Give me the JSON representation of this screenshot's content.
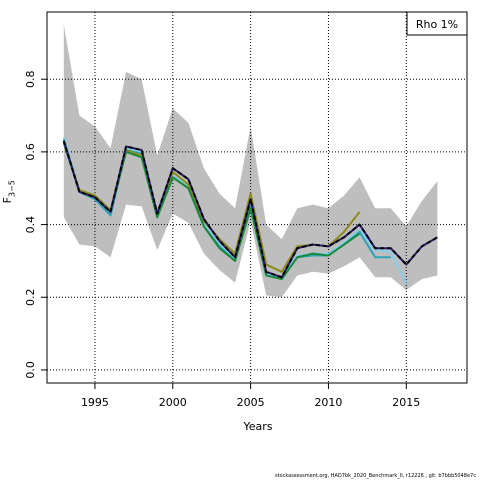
{
  "chart_data": {
    "type": "line",
    "xlabel": "Years",
    "ylabel": "F",
    "ylabel_sub": "3−5",
    "legend_text": "Rho 1%",
    "footer": "stockassessment.org, HAD7bk_2020_Benchmark_II, r12226 , git: b7bbb5048e7c",
    "x": [
      1993,
      1994,
      1995,
      1996,
      1997,
      1998,
      1999,
      2000,
      2001,
      2002,
      2003,
      2004,
      2005,
      2006,
      2007,
      2008,
      2009,
      2010,
      2011,
      2012,
      2013,
      2014,
      2015,
      2016,
      2017
    ],
    "xlim": [
      1991.92,
      2018.9
    ],
    "xticks": [
      1995,
      2000,
      2005,
      2010,
      2015
    ],
    "ylim": [
      -0.036,
      0.985
    ],
    "yticks": [
      {
        "value": 0,
        "label": "0.0"
      },
      0.2,
      0.4,
      0.6,
      0.8
    ],
    "grid": true,
    "band": {
      "color": "#bebebe",
      "upper": [
        0.95,
        0.7,
        0.67,
        0.61,
        0.82,
        0.8,
        0.59,
        0.72,
        0.68,
        0.555,
        0.485,
        0.445,
        0.67,
        0.4,
        0.36,
        0.445,
        0.455,
        0.445,
        0.48,
        0.53,
        0.445,
        0.445,
        0.395,
        0.465,
        0.52
      ],
      "lower": [
        0.42,
        0.345,
        0.34,
        0.31,
        0.455,
        0.45,
        0.33,
        0.43,
        0.405,
        0.32,
        0.275,
        0.24,
        0.41,
        0.205,
        0.2,
        0.26,
        0.27,
        0.265,
        0.285,
        0.31,
        0.255,
        0.255,
        0.22,
        0.25,
        0.26
      ]
    },
    "series": [
      {
        "color": "#87ceeb",
        "dash": false,
        "values": [
          0.64,
          0.49,
          0.47,
          0.425,
          0.61,
          0.6,
          0.425,
          0.535,
          0.505,
          0.4,
          0.345,
          0.305,
          0.455,
          0.265,
          0.255,
          0.315,
          0.32,
          0.32,
          0.35,
          0.385,
          0.33,
          0.325,
          0.235,
          null,
          null
        ]
      },
      {
        "color": "#2ea3b8",
        "dash": false,
        "values": [
          0.635,
          0.49,
          0.47,
          0.425,
          0.605,
          0.595,
          0.42,
          0.53,
          0.5,
          0.395,
          0.34,
          0.3,
          0.45,
          0.26,
          0.25,
          0.31,
          0.315,
          0.315,
          0.345,
          0.38,
          0.31,
          0.31,
          null,
          null,
          null
        ]
      },
      {
        "color": "#8b8b1a",
        "dash": false,
        "values": [
          0.625,
          0.495,
          0.48,
          0.44,
          0.605,
          0.59,
          0.43,
          0.545,
          0.51,
          0.41,
          0.36,
          0.32,
          0.485,
          0.29,
          0.27,
          0.34,
          0.345,
          0.34,
          0.38,
          0.435,
          null,
          null,
          null,
          null,
          null
        ]
      },
      {
        "color": "#1a8a3a",
        "dash": false,
        "values": [
          0.625,
          0.49,
          0.475,
          0.435,
          0.6,
          0.585,
          0.42,
          0.53,
          0.5,
          0.395,
          0.335,
          0.3,
          0.445,
          0.26,
          0.25,
          0.31,
          0.32,
          0.315,
          0.345,
          0.375,
          null,
          null,
          null,
          null,
          null
        ]
      },
      {
        "color": "#2b1a6e",
        "dash": false,
        "values": [
          0.63,
          0.49,
          0.475,
          0.435,
          0.615,
          0.605,
          0.43,
          0.555,
          0.525,
          0.415,
          0.355,
          0.31,
          0.47,
          0.27,
          0.255,
          0.335,
          0.345,
          0.34,
          0.365,
          0.4,
          0.335,
          0.335,
          0.29,
          0.34,
          0.365
        ]
      },
      {
        "color": "#000000",
        "dash": true,
        "values": [
          0.63,
          0.49,
          0.475,
          0.435,
          0.615,
          0.605,
          0.43,
          0.555,
          0.525,
          0.415,
          0.355,
          0.31,
          0.47,
          0.27,
          0.255,
          0.335,
          0.345,
          0.34,
          0.365,
          0.4,
          0.335,
          0.335,
          0.29,
          0.34,
          0.365
        ]
      }
    ]
  }
}
